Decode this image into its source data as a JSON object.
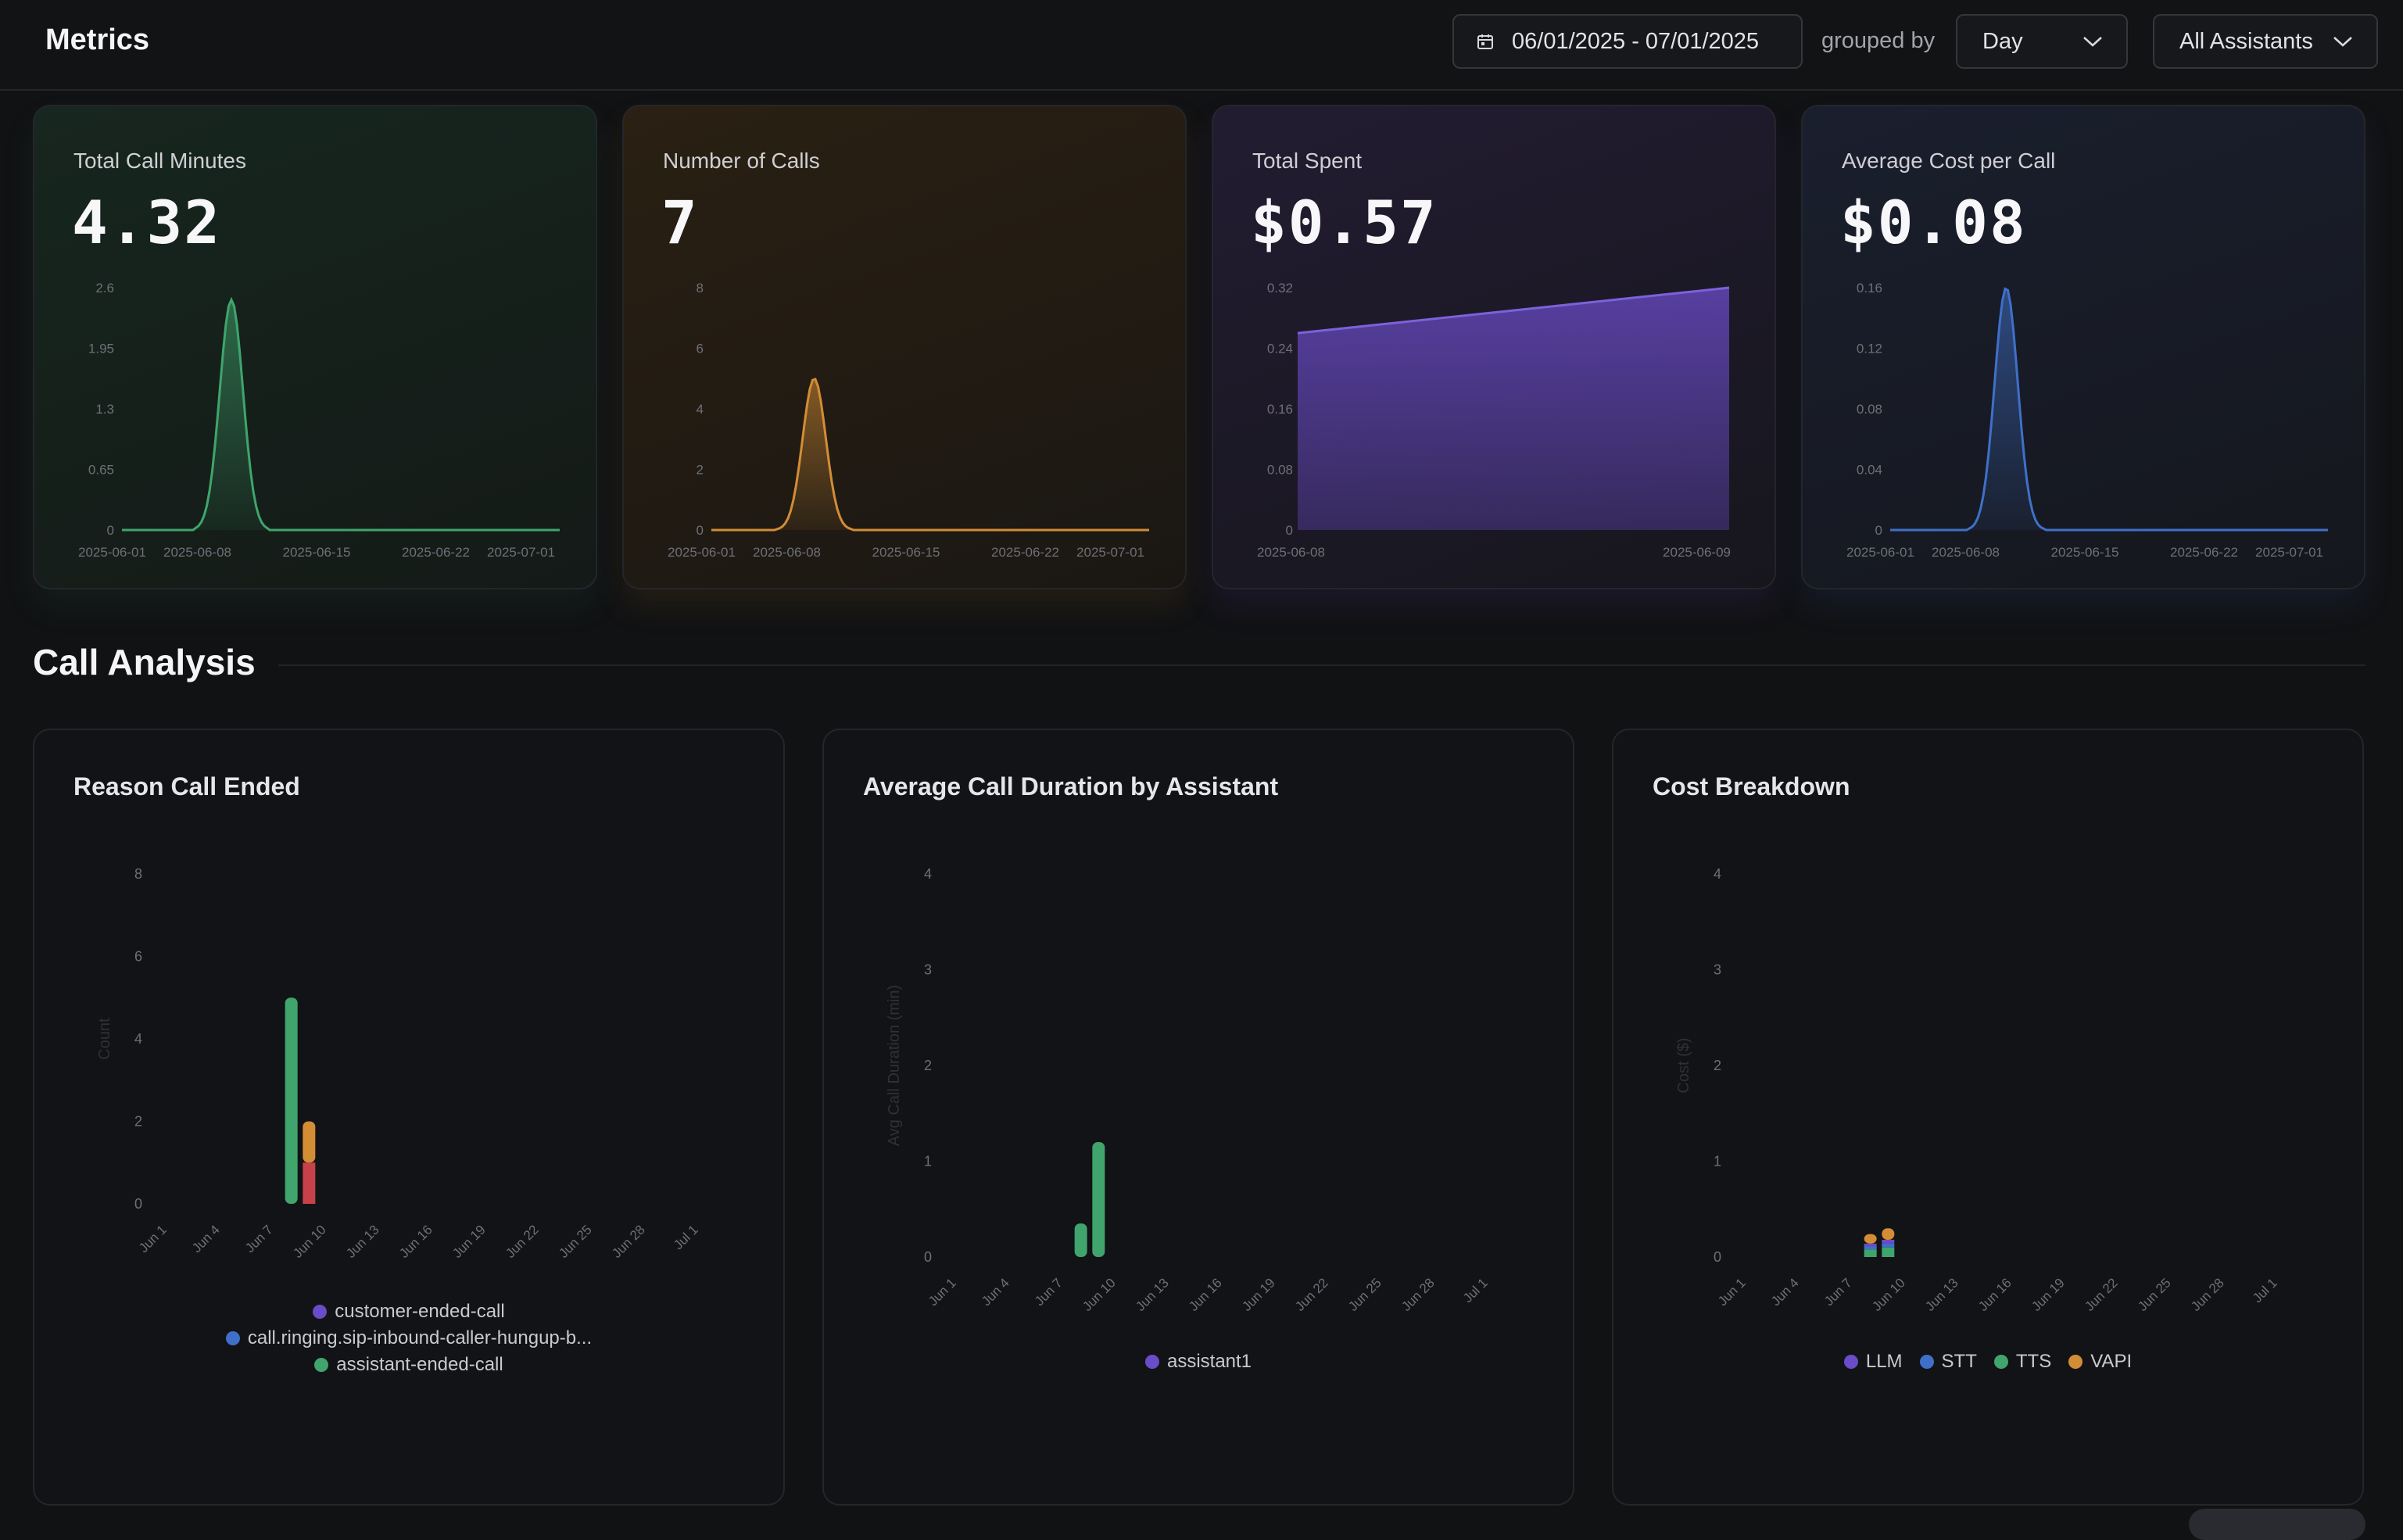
{
  "header": {
    "title": "Metrics",
    "date_range": "06/01/2025 - 07/01/2025",
    "grouped_by_label": "grouped by",
    "group_value": "Day",
    "assistant_filter": "All Assistants"
  },
  "colors": {
    "green": "#3fa56c",
    "orange": "#d38d35",
    "purple": "#6a4cc9",
    "blue": "#3f70c9",
    "red": "#c7414a"
  },
  "metric_cards": [
    {
      "label": "Total Call Minutes",
      "value": "4.32",
      "chart_data": {
        "type": "area",
        "x": [
          "2025-06-01",
          "2025-06-08",
          "2025-06-15",
          "2025-06-22",
          "2025-07-01"
        ],
        "y_ticks": [
          "2.6",
          "1.95",
          "1.3",
          "0.65",
          "0"
        ],
        "ylim": [
          0,
          2.6
        ],
        "peak_value": 2.47,
        "peak_position": 0.25
      }
    },
    {
      "label": "Number of Calls",
      "value": "7",
      "chart_data": {
        "type": "area",
        "x": [
          "2025-06-01",
          "2025-06-08",
          "2025-06-15",
          "2025-06-22",
          "2025-07-01"
        ],
        "y_ticks": [
          "8",
          "6",
          "4",
          "2",
          "0"
        ],
        "ylim": [
          0,
          8
        ],
        "peak_value": 5,
        "peak_position": 0.235
      }
    },
    {
      "label": "Total Spent",
      "value": "$0.57",
      "chart_data": {
        "type": "area",
        "x": [
          "2025-06-08",
          "2025-06-09"
        ],
        "y_ticks": [
          "0.32",
          "0.24",
          "0.16",
          "0.08",
          "0"
        ],
        "ylim": [
          0,
          0.32
        ],
        "values": [
          0.26,
          0.32
        ]
      }
    },
    {
      "label": "Average Cost per Call",
      "value": "$0.08",
      "chart_data": {
        "type": "area",
        "x": [
          "2025-06-01",
          "2025-06-08",
          "2025-06-15",
          "2025-06-22",
          "2025-07-01"
        ],
        "y_ticks": [
          "0.16",
          "0.12",
          "0.08",
          "0.04",
          "0"
        ],
        "ylim": [
          0,
          0.16
        ],
        "peak_value": 0.16,
        "peak_position": 0.265
      }
    }
  ],
  "section": {
    "title": "Call Analysis"
  },
  "chart_data": [
    {
      "type": "bar",
      "title": "Reason Call Ended",
      "ylabel": "Count",
      "ylim": [
        0,
        8
      ],
      "y_ticks": [
        "8",
        "6",
        "4",
        "2",
        "0"
      ],
      "categories": [
        "Jun 1",
        "Jun 4",
        "Jun 7",
        "Jun 10",
        "Jun 13",
        "Jun 16",
        "Jun 19",
        "Jun 22",
        "Jun 25",
        "Jun 28",
        "Jul 1"
      ],
      "bars": [
        {
          "date_index": 8,
          "stack": [
            {
              "series": "assistant-ended-call",
              "value": 5
            }
          ]
        },
        {
          "date_index": 9,
          "stack": [
            {
              "series": "call.ringing.sip-inbound-caller-hungup-b...",
              "value": 1
            },
            {
              "series": "customer-ended-call",
              "value": 1
            }
          ]
        }
      ],
      "series": [
        {
          "name": "customer-ended-call",
          "color": "#6a4cc9"
        },
        {
          "name": "call.ringing.sip-inbound-caller-hungup-b...",
          "color": "#3f70c9"
        },
        {
          "name": "assistant-ended-call",
          "color": "#3fa56c"
        }
      ]
    },
    {
      "type": "bar",
      "title": "Average Call Duration by Assistant",
      "ylabel": "Avg Call Duration (min)",
      "ylim": [
        0,
        4
      ],
      "y_ticks": [
        "4",
        "3",
        "2",
        "1",
        "0"
      ],
      "categories": [
        "Jun 1",
        "Jun 4",
        "Jun 7",
        "Jun 10",
        "Jun 13",
        "Jun 16",
        "Jun 19",
        "Jun 22",
        "Jun 25",
        "Jun 28",
        "Jul 1"
      ],
      "bars": [
        {
          "date_index": 8,
          "stack": [
            {
              "series": "assistant1",
              "value": 0.35
            }
          ]
        },
        {
          "date_index": 9,
          "stack": [
            {
              "series": "assistant1",
              "value": 1.2
            }
          ]
        }
      ],
      "series": [
        {
          "name": "assistant1",
          "color": "#6a4cc9"
        }
      ]
    },
    {
      "type": "bar",
      "title": "Cost Breakdown",
      "ylabel": "Cost ($)",
      "ylim": [
        0,
        4
      ],
      "y_ticks": [
        "4",
        "3",
        "2",
        "1",
        "0"
      ],
      "categories": [
        "Jun 1",
        "Jun 4",
        "Jun 7",
        "Jun 10",
        "Jun 13",
        "Jun 16",
        "Jun 19",
        "Jun 22",
        "Jun 25",
        "Jun 28",
        "Jul 1"
      ],
      "bars": [
        {
          "date_index": 8,
          "stack": [
            {
              "series": "TTS",
              "value": 0.08
            },
            {
              "series": "STT",
              "value": 0.03
            },
            {
              "series": "LLM",
              "value": 0.03
            },
            {
              "series": "VAPI",
              "value": 0.1
            }
          ]
        },
        {
          "date_index": 9,
          "stack": [
            {
              "series": "TTS",
              "value": 0.1
            },
            {
              "series": "STT",
              "value": 0.04
            },
            {
              "series": "LLM",
              "value": 0.04
            },
            {
              "series": "VAPI",
              "value": 0.12
            }
          ]
        }
      ],
      "series": [
        {
          "name": "LLM",
          "color": "#6a4cc9"
        },
        {
          "name": "STT",
          "color": "#3f70c9"
        },
        {
          "name": "TTS",
          "color": "#3fa56c"
        },
        {
          "name": "VAPI",
          "color": "#d38d35"
        }
      ]
    }
  ]
}
